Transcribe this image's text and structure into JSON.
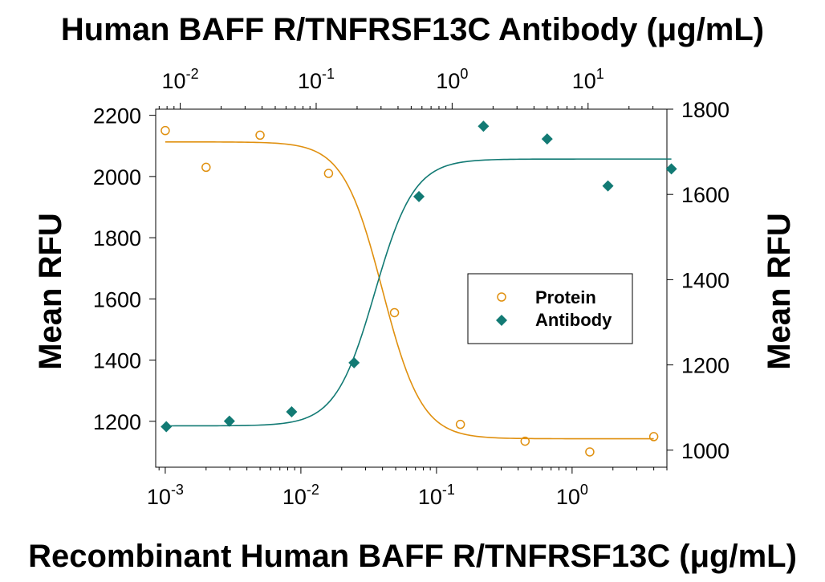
{
  "chart_data": {
    "type": "scatter",
    "title": "Human BAFF R/TNFRSF13C Antibody (μg/mL)",
    "xlabel": "Recombinant Human BAFF R/TNFRSF13C (μg/mL)",
    "ylabel_left": "Mean RFU",
    "ylabel_right": "Mean RFU",
    "x_bottom": {
      "scale": "log",
      "range": [
        0.00085,
        5.0
      ],
      "ticks": [
        {
          "base": "10",
          "exp": "-3",
          "value": 0.001
        },
        {
          "base": "10",
          "exp": "-2",
          "value": 0.01
        },
        {
          "base": "10",
          "exp": "-1",
          "value": 0.1
        },
        {
          "base": "10",
          "exp": "0",
          "value": 1
        }
      ]
    },
    "x_top": {
      "scale": "log",
      "range": [
        0.0066,
        38
      ],
      "ticks": [
        {
          "base": "10",
          "exp": "-2",
          "value": 0.01
        },
        {
          "base": "10",
          "exp": "-1",
          "value": 0.1
        },
        {
          "base": "10",
          "exp": "0",
          "value": 1
        },
        {
          "base": "10",
          "exp": "1",
          "value": 10
        }
      ]
    },
    "y_left": {
      "range": [
        1050,
        2220
      ],
      "ticks": [
        1200,
        1400,
        1600,
        1800,
        2000,
        2200
      ]
    },
    "y_right": {
      "range": [
        960,
        1800
      ],
      "ticks": [
        1000,
        1200,
        1400,
        1600,
        1800
      ]
    },
    "legend": {
      "position": "center-right"
    },
    "colors": {
      "protein": "#e0900f",
      "antibody": "#127a74"
    },
    "series": [
      {
        "name": "Protein",
        "axes": "bottom-left",
        "marker": "open-circle",
        "x": [
          0.001,
          0.002,
          0.005,
          0.016,
          0.049,
          0.15,
          0.45,
          1.35,
          4.0
        ],
        "y": [
          2150,
          2030,
          2135,
          2010,
          1555,
          1190,
          1135,
          1100,
          1150
        ],
        "fit": {
          "top": 2113,
          "bottom": 1143,
          "ec50": 0.04,
          "hill": 3.0
        }
      },
      {
        "name": "Antibody",
        "axes": "top-right",
        "marker": "filled-diamond",
        "x": [
          0.0079,
          0.023,
          0.066,
          0.19,
          0.57,
          1.7,
          5.0,
          14.0,
          41.0
        ],
        "y": [
          1055,
          1068,
          1090,
          1205,
          1595,
          1760,
          1730,
          1620,
          1660
        ],
        "fit": {
          "top": 1683,
          "bottom": 1057,
          "ec50": 0.27,
          "hill": 3.0
        }
      }
    ]
  }
}
